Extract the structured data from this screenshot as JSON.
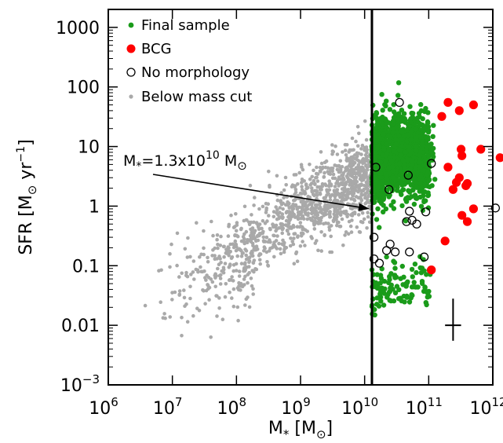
{
  "chart_data": {
    "type": "scatter",
    "title": "",
    "xlabel": {
      "base": "M",
      "sub": "*",
      "unit_open": " [M",
      "unit_sub": "⊙",
      "unit_close": "]"
    },
    "ylabel": {
      "base": "SFR [M",
      "sub": "⊙",
      "mid": " yr",
      "sup": "−1",
      "close": "]"
    },
    "x_scale": "log",
    "y_scale": "log",
    "xlim": [
      1000000.0,
      1000000000000.0
    ],
    "ylim": [
      0.001,
      2000
    ],
    "x_tick_labels": [
      {
        "value": 1000000.0,
        "base": "10",
        "exp": "6"
      },
      {
        "value": 10000000.0,
        "base": "10",
        "exp": "7"
      },
      {
        "value": 100000000.0,
        "base": "10",
        "exp": "8"
      },
      {
        "value": 1000000000.0,
        "base": "10",
        "exp": "9"
      },
      {
        "value": 10000000000.0,
        "base": "10",
        "exp": "10"
      },
      {
        "value": 100000000000.0,
        "base": "10",
        "exp": "11"
      },
      {
        "value": 1000000000000.0,
        "base": "10",
        "exp": "12"
      }
    ],
    "y_tick_labels": [
      {
        "value": 0.001,
        "base": "10",
        "exp": "−3"
      },
      {
        "value": 0.01,
        "text": "0.01"
      },
      {
        "value": 0.1,
        "text": "0.1"
      },
      {
        "value": 1,
        "text": "1"
      },
      {
        "value": 10,
        "text": "10"
      },
      {
        "value": 100,
        "text": "100"
      },
      {
        "value": 1000,
        "text": "1000"
      }
    ],
    "legend": {
      "placement": "top-left",
      "entries": [
        {
          "label": "Final sample",
          "color": "#1a9b1a",
          "marker": "dot"
        },
        {
          "label": "BCG",
          "color": "#ff0000",
          "marker": "big-dot"
        },
        {
          "label": "No morphology",
          "color": "#000000",
          "marker": "open-circle"
        },
        {
          "label": "Below mass cut",
          "color": "#a9a9a9",
          "marker": "small-dot"
        }
      ]
    },
    "annotation": {
      "prefix": "M",
      "sub": "*",
      "mid": "=1.3x10",
      "sup": "10",
      "unit": " M",
      "unit_sub": "⊙",
      "arrow_to": {
        "x": 13000000000.0,
        "y": 0.9
      }
    },
    "mass_cut": 13000000000.0,
    "error_bar": {
      "x": 240000000000.0,
      "y": 0.01,
      "x_range": [
        180000000000.0,
        320000000000.0
      ],
      "y_range": [
        0.0055,
        0.028
      ]
    },
    "grid": false,
    "series": [
      {
        "name": "Below mass cut",
        "color": "#a9a9a9",
        "clouds": [
          {
            "x_range": [
              20000000.0,
              13000000000.0
            ],
            "y_center_at_logx": [
              [
                7.3,
                0.06
              ],
              [
                8.0,
                0.15
              ],
              [
                9.0,
                0.8
              ],
              [
                10.0,
                3.0
              ]
            ],
            "spread_dex": 0.55,
            "n": 1050
          },
          {
            "x_range": [
              3000000.0,
              200000000.0
            ],
            "y_center_at_logx": [
              [
                6.5,
                0.03
              ],
              [
                7.5,
                0.06
              ],
              [
                8.3,
                0.1
              ]
            ],
            "spread_dex": 0.7,
            "n": 150
          }
        ]
      },
      {
        "name": "Final sample",
        "color": "#1a9b1a",
        "clouds": [
          {
            "x_range": [
              13000000000.0,
              130000000000.0
            ],
            "y_center_at_logx": [
              [
                10.1,
                5.0
              ],
              [
                10.5,
                8.0
              ],
              [
                11.0,
                6.0
              ]
            ],
            "spread_dex": 0.55,
            "n": 1500
          },
          {
            "x_range": [
              13000000000.0,
              130000000000.0
            ],
            "y_center_at_logx": [
              [
                10.1,
                0.05
              ],
              [
                10.6,
                0.05
              ],
              [
                11.0,
                0.05
              ]
            ],
            "spread_dex": 0.35,
            "n": 110
          }
        ]
      }
    ],
    "bcg_points": [
      {
        "x": 160000000000.0,
        "y": 32
      },
      {
        "x": 200000000000.0,
        "y": 55
      },
      {
        "x": 300000000000.0,
        "y": 40
      },
      {
        "x": 500000000000.0,
        "y": 50
      },
      {
        "x": 320000000000.0,
        "y": 9
      },
      {
        "x": 330000000000.0,
        "y": 7
      },
      {
        "x": 650000000000.0,
        "y": 9
      },
      {
        "x": 1300000000000.0,
        "y": 6.5
      },
      {
        "x": 200000000000.0,
        "y": 4.5
      },
      {
        "x": 300000000000.0,
        "y": 3
      },
      {
        "x": 270000000000.0,
        "y": 2.5
      },
      {
        "x": 400000000000.0,
        "y": 2.4
      },
      {
        "x": 380000000000.0,
        "y": 2.2
      },
      {
        "x": 240000000000.0,
        "y": 1.9
      },
      {
        "x": 500000000000.0,
        "y": 0.9
      },
      {
        "x": 330000000000.0,
        "y": 0.7
      },
      {
        "x": 400000000000.0,
        "y": 0.55
      },
      {
        "x": 180000000000.0,
        "y": 0.26
      },
      {
        "x": 110000000000.0,
        "y": 0.085
      }
    ],
    "no_morphology_points": [
      {
        "x": 35000000000.0,
        "y": 55
      },
      {
        "x": 15000000000.0,
        "y": 4.5
      },
      {
        "x": 48000000000.0,
        "y": 3.3
      },
      {
        "x": 110000000000.0,
        "y": 5.2
      },
      {
        "x": 24000000000.0,
        "y": 1.9
      },
      {
        "x": 50000000000.0,
        "y": 0.82
      },
      {
        "x": 90000000000.0,
        "y": 0.8
      },
      {
        "x": 55000000000.0,
        "y": 0.58
      },
      {
        "x": 45000000000.0,
        "y": 0.55
      },
      {
        "x": 65000000000.0,
        "y": 0.5
      },
      {
        "x": 14000000000.0,
        "y": 0.3
      },
      {
        "x": 25000000000.0,
        "y": 0.23
      },
      {
        "x": 22000000000.0,
        "y": 0.18
      },
      {
        "x": 30000000000.0,
        "y": 0.17
      },
      {
        "x": 50000000000.0,
        "y": 0.17
      },
      {
        "x": 14000000000.0,
        "y": 0.13
      },
      {
        "x": 17000000000.0,
        "y": 0.11
      },
      {
        "x": 85000000000.0,
        "y": 0.14
      },
      {
        "x": 1100000000000.0,
        "y": 0.93
      }
    ]
  }
}
